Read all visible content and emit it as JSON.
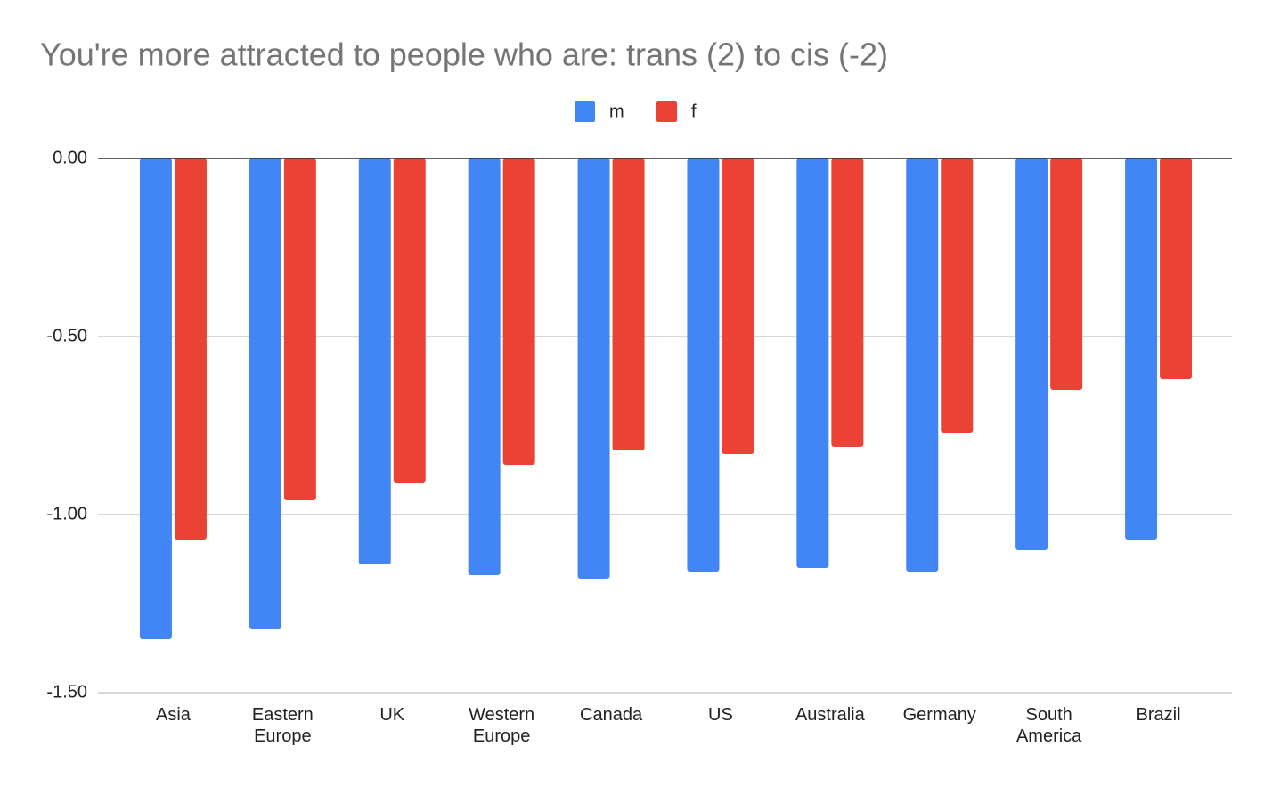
{
  "chart_data": {
    "type": "bar",
    "title": "You're more attracted to people who are: trans (2) to cis (-2)",
    "categories": [
      "Asia",
      "Eastern Europe",
      "UK",
      "Western Europe",
      "Canada",
      "US",
      "Australia",
      "Germany",
      "South America",
      "Brazil"
    ],
    "series": [
      {
        "name": "m",
        "color": "#4285f4",
        "values": [
          -1.35,
          -1.32,
          -1.14,
          -1.17,
          -1.18,
          -1.16,
          -1.15,
          -1.16,
          -1.1,
          -1.07
        ]
      },
      {
        "name": "f",
        "color": "#ea4335",
        "values": [
          -1.07,
          -0.96,
          -0.91,
          -0.86,
          -0.82,
          -0.83,
          -0.81,
          -0.77,
          -0.65,
          -0.62
        ]
      }
    ],
    "ylim": [
      -1.5,
      0
    ],
    "yticks": [
      {
        "value": 0,
        "label": "0.00"
      },
      {
        "value": -0.5,
        "label": "-0.50"
      },
      {
        "value": -1,
        "label": "-1.00"
      },
      {
        "value": -1.5,
        "label": "-1.50"
      }
    ],
    "grid": true,
    "legend": "top"
  }
}
